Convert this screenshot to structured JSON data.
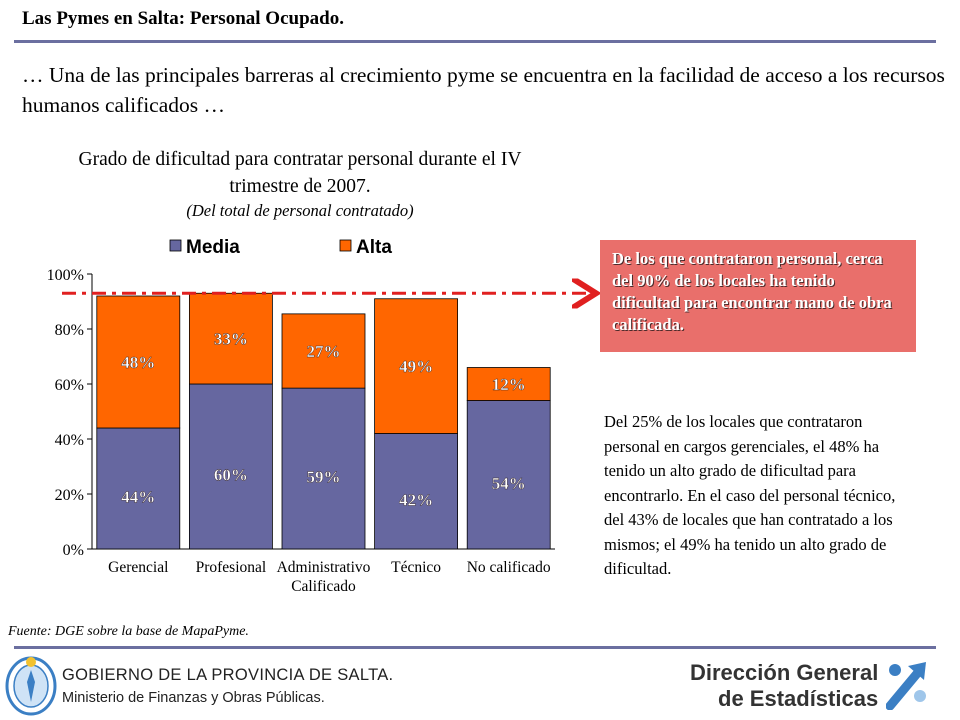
{
  "slide": {
    "title": "Las Pymes en Salta: Personal Ocupado.",
    "intro": "… Una de las principales barreras al crecimiento pyme se encuentra en la facilidad de acceso a los recursos humanos calificados …",
    "callout": "De los que contrataron personal, cerca del 90% de los locales ha tenido dificultad para encontrar mano de obra calificada.",
    "side_text": "Del 25% de los locales que contrataron personal en cargos gerenciales, el 48% ha tenido un alto grado de dificultad para encontrarlo. En el caso del personal técnico, del 43% de locales que han contratado a los mismos; el 49% ha tenido un alto grado de dificultad.",
    "source": "Fuente: DGE  sobre la base de MapaPyme."
  },
  "footer": {
    "gov_line1": "GOBIERNO DE LA PROVINCIA DE SALTA.",
    "gov_line2": "Ministerio de Finanzas y Obras Públicas.",
    "dge_line1": "Dirección General",
    "dge_line2": "de Estadísticas"
  },
  "colors": {
    "media": "#6667a0",
    "alta": "#ff6600",
    "callout": "#e96f6b",
    "rule": "#6b6fa0",
    "reference_line": "#e02020"
  },
  "chart_data": {
    "type": "bar",
    "stacked": true,
    "title": "Grado de dificultad para contratar personal durante el IV trimestre de 2007.",
    "subtitle": "(Del total de personal contratado)",
    "categories": [
      "Gerencial",
      "Profesional",
      "Administrativo Calificado",
      "Técnico",
      "No calificado"
    ],
    "series": [
      {
        "name": "Media",
        "values": [
          44,
          60,
          58.5,
          42,
          54
        ],
        "labels": [
          "44%",
          "60%",
          "59%",
          "42%",
          "54%"
        ]
      },
      {
        "name": "Alta",
        "values": [
          48,
          33,
          27,
          49,
          12
        ],
        "labels": [
          "48%",
          "33%",
          "27%",
          "49%",
          "12%"
        ]
      }
    ],
    "yticks": [
      "0%",
      "20%",
      "40%",
      "60%",
      "80%",
      "100%"
    ],
    "ylim": [
      0,
      100
    ],
    "reference_line": 93,
    "legend": "top",
    "grid": false
  }
}
